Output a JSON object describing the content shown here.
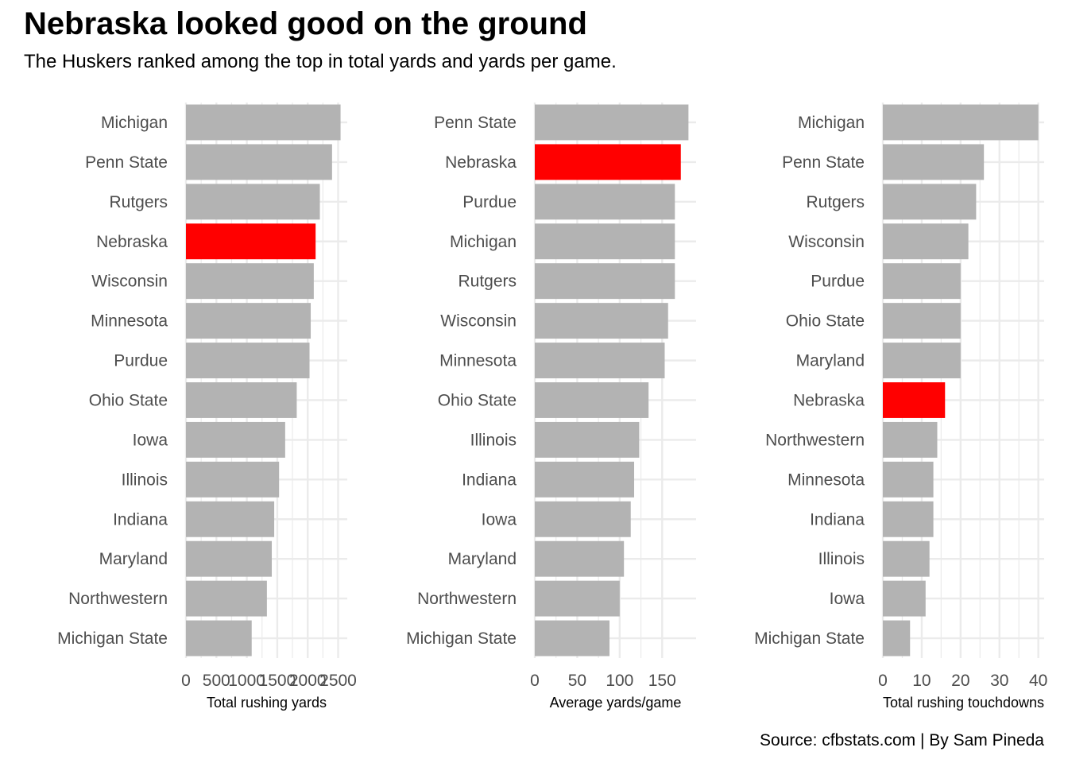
{
  "title": "Nebraska looked good on the ground",
  "subtitle": "The Huskers ranked among the top in total yards and yards per game.",
  "caption": "Source: cfbstats.com | By Sam Pineda",
  "colors": {
    "highlight": "#ff0000",
    "bar": "#b3b3b3",
    "grid": "#ebebeb"
  },
  "highlight_team": "Nebraska",
  "chart_data": [
    {
      "type": "bar",
      "orientation": "horizontal",
      "xlabel": "Total rushing yards",
      "xlim": [
        0,
        2650
      ],
      "xticks": [
        0,
        500,
        1000,
        1500,
        2000,
        2500
      ],
      "categories": [
        "Michigan",
        "Penn State",
        "Rutgers",
        "Nebraska",
        "Wisconsin",
        "Minnesota",
        "Purdue",
        "Ohio State",
        "Iowa",
        "Illinois",
        "Indiana",
        "Maryland",
        "Northwestern",
        "Michigan State"
      ],
      "values": [
        2540,
        2400,
        2200,
        2130,
        2100,
        2050,
        2030,
        1820,
        1630,
        1530,
        1450,
        1410,
        1330,
        1080
      ]
    },
    {
      "type": "bar",
      "orientation": "horizontal",
      "xlabel": "Average yards/game",
      "xlim": [
        0,
        190
      ],
      "xticks": [
        0,
        50,
        100,
        150
      ],
      "categories": [
        "Penn State",
        "Nebraska",
        "Purdue",
        "Michigan",
        "Rutgers",
        "Wisconsin",
        "Minnesota",
        "Ohio State",
        "Illinois",
        "Indiana",
        "Iowa",
        "Maryland",
        "Northwestern",
        "Michigan State"
      ],
      "values": [
        181,
        172,
        165,
        165,
        165,
        157,
        153,
        134,
        123,
        117,
        113,
        105,
        100,
        88
      ]
    },
    {
      "type": "bar",
      "orientation": "horizontal",
      "xlabel": "Total rushing touchdowns",
      "xlim": [
        0,
        41.5
      ],
      "xticks": [
        0,
        10,
        20,
        30,
        40
      ],
      "categories": [
        "Michigan",
        "Penn State",
        "Rutgers",
        "Wisconsin",
        "Purdue",
        "Ohio State",
        "Maryland",
        "Nebraska",
        "Northwestern",
        "Minnesota",
        "Indiana",
        "Illinois",
        "Iowa",
        "Michigan State"
      ],
      "values": [
        40,
        26,
        24,
        22,
        20,
        20,
        20,
        16,
        14,
        13,
        13,
        12,
        11,
        7
      ]
    }
  ]
}
